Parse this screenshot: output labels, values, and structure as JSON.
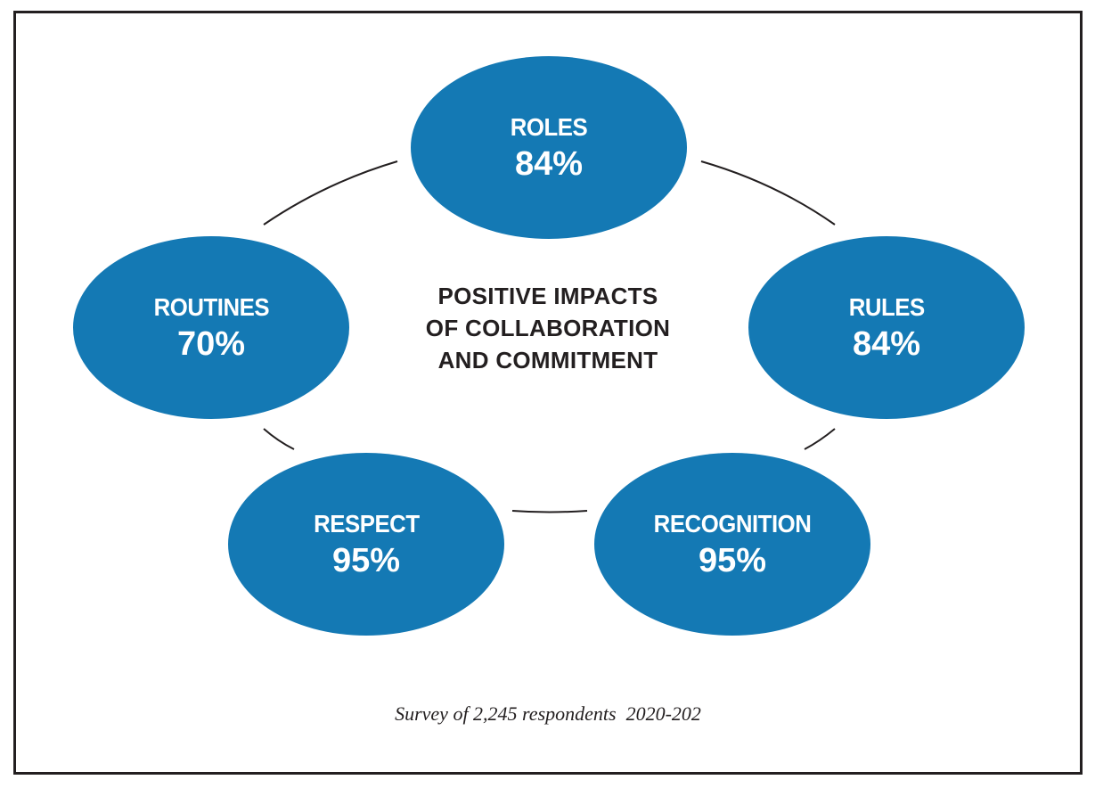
{
  "diagram": {
    "title_lines": [
      "POSITIVE IMPACTS",
      "OF COLLABORATION",
      "AND COMMITMENT"
    ],
    "nodes": [
      {
        "id": "roles",
        "label": "ROLES",
        "value": "84%"
      },
      {
        "id": "rules",
        "label": "RULES",
        "value": "84%"
      },
      {
        "id": "recognition",
        "label": "RECOGNITION",
        "value": "95%"
      },
      {
        "id": "respect",
        "label": "RESPECT",
        "value": "95%"
      },
      {
        "id": "routines",
        "label": "ROUTINES",
        "value": "70%"
      }
    ],
    "caption": "Survey of 2,245 respondents  2020-202",
    "colors": {
      "node_fill": "#1479b4",
      "text": "#231f20",
      "border": "#231f20"
    }
  }
}
